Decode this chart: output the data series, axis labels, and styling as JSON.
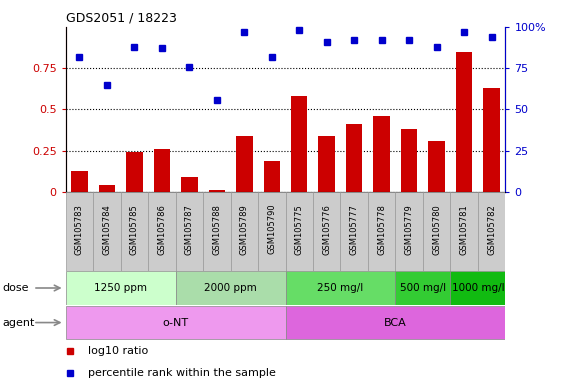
{
  "title": "GDS2051 / 18223",
  "samples": [
    "GSM105783",
    "GSM105784",
    "GSM105785",
    "GSM105786",
    "GSM105787",
    "GSM105788",
    "GSM105789",
    "GSM105790",
    "GSM105775",
    "GSM105776",
    "GSM105777",
    "GSM105778",
    "GSM105779",
    "GSM105780",
    "GSM105781",
    "GSM105782"
  ],
  "log10_ratio": [
    0.13,
    0.04,
    0.24,
    0.26,
    0.09,
    0.01,
    0.34,
    0.19,
    0.58,
    0.34,
    0.41,
    0.46,
    0.38,
    0.31,
    0.85,
    0.63
  ],
  "percentile_rank": [
    82,
    65,
    88,
    87,
    76,
    56,
    97,
    82,
    98,
    91,
    92,
    92,
    92,
    88,
    97,
    94
  ],
  "bar_color": "#cc0000",
  "dot_color": "#0000cc",
  "ylim_left": [
    0,
    1.0
  ],
  "ylim_right": [
    0,
    100
  ],
  "yticks_left": [
    0,
    0.25,
    0.5,
    0.75
  ],
  "ytick_labels_left": [
    "0",
    "0.25",
    "0.5",
    "0.75"
  ],
  "yticks_right": [
    0,
    25,
    50,
    75,
    100
  ],
  "ytick_labels_right": [
    "0",
    "25",
    "50",
    "75",
    "100%"
  ],
  "dose_groups": [
    {
      "label": "1250 ppm",
      "start": 0,
      "end": 4,
      "color": "#ccffcc"
    },
    {
      "label": "2000 ppm",
      "start": 4,
      "end": 8,
      "color": "#aaddaa"
    },
    {
      "label": "250 mg/l",
      "start": 8,
      "end": 12,
      "color": "#66dd66"
    },
    {
      "label": "500 mg/l",
      "start": 12,
      "end": 14,
      "color": "#33cc33"
    },
    {
      "label": "1000 mg/l",
      "start": 14,
      "end": 16,
      "color": "#11bb11"
    }
  ],
  "agent_groups": [
    {
      "label": "o-NT",
      "start": 0,
      "end": 8,
      "color": "#ee99ee"
    },
    {
      "label": "BCA",
      "start": 8,
      "end": 16,
      "color": "#dd66dd"
    }
  ],
  "legend_items": [
    {
      "label": "log10 ratio",
      "color": "#cc0000"
    },
    {
      "label": "percentile rank within the sample",
      "color": "#0000cc"
    }
  ],
  "left_color": "#cc0000",
  "right_color": "#0000cc",
  "bg_color": "#ffffff",
  "xtick_bg": "#cccccc",
  "plot_bg": "#ffffff"
}
